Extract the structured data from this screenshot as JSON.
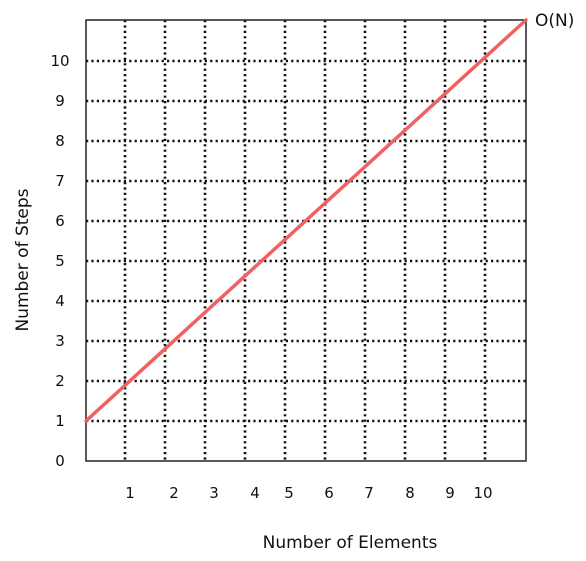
{
  "chart_data": {
    "type": "line",
    "xlabel": "Number of Elements",
    "ylabel": "Number of Steps",
    "x_ticks": [
      "1",
      "2",
      "3",
      "4",
      "5",
      "6",
      "7",
      "8",
      "9",
      "10"
    ],
    "y_ticks": [
      "0",
      "1",
      "2",
      "3",
      "4",
      "5",
      "6",
      "7",
      "8",
      "9",
      "10"
    ],
    "grid": true,
    "series": [
      {
        "name": "O(N)",
        "color": "#f06262",
        "points": [
          [
            0,
            1
          ],
          [
            11,
            11
          ]
        ]
      }
    ]
  }
}
